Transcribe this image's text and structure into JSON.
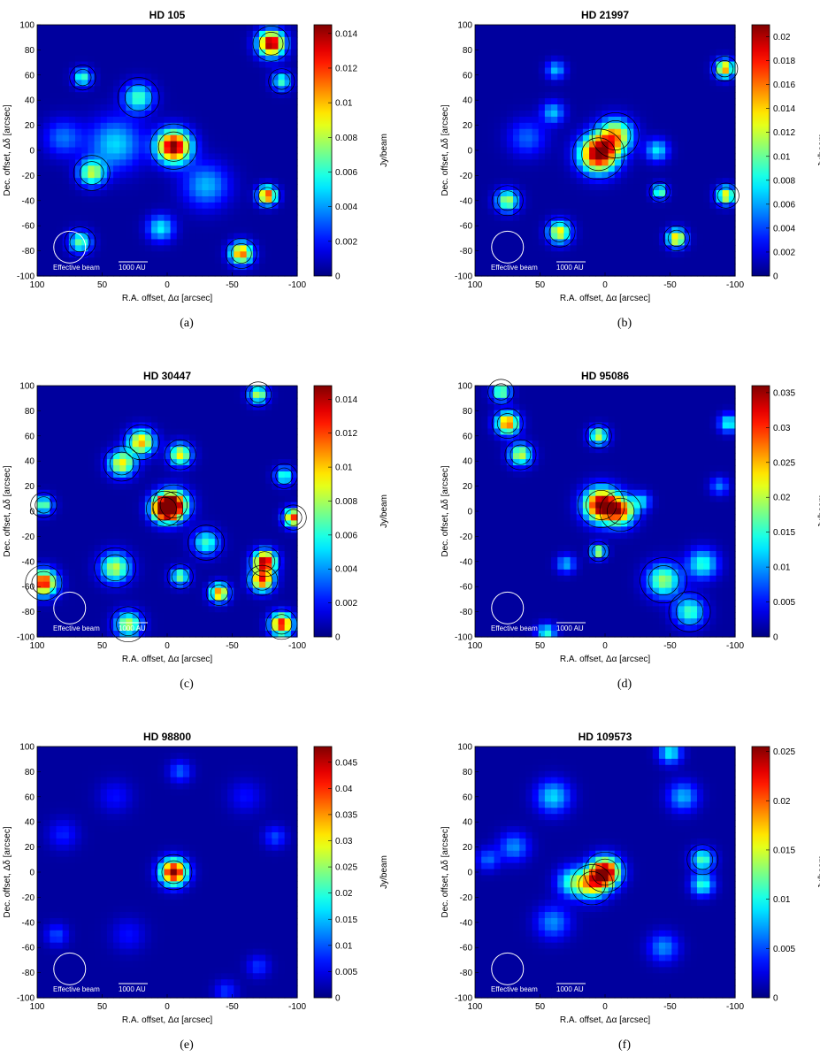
{
  "figure": {
    "beam_label": "Effective beam",
    "scale_label": "1000 AU",
    "colorbar_label": "Jy/beam",
    "xlabel": "R.A. offset, Δα [arcsec]",
    "ylabel": "Dec. offset, Δδ [arcsec]"
  },
  "chart_data": [
    {
      "type": "heatmap",
      "title": "HD 105",
      "caption": "(a)",
      "xlim": [
        100,
        -100
      ],
      "ylim": [
        -100,
        100
      ],
      "xticks": [
        100,
        50,
        0,
        -50,
        -100
      ],
      "yticks": [
        100,
        80,
        60,
        40,
        20,
        0,
        -20,
        -40,
        -60,
        -80,
        -100
      ],
      "xlabel": "R.A. offset, Δα [arcsec]",
      "ylabel": "Dec. offset, Δδ [arcsec]",
      "colorbar_label": "Jy/beam",
      "colorbar_range": [
        0,
        0.0145
      ],
      "colorbar_ticks": [
        "0",
        "0.002",
        "0.004",
        "0.006",
        "0.008",
        "0.01",
        "0.012",
        "0.014"
      ],
      "colorbar_tick_values": [
        0,
        0.002,
        0.004,
        0.006,
        0.008,
        0.01,
        0.012,
        0.014
      ],
      "sources": [
        {
          "x": -5,
          "y": 3,
          "peak": 0.0145,
          "width": 9
        },
        {
          "x": -80,
          "y": 85,
          "peak": 0.0145,
          "width": 7
        },
        {
          "x": -77,
          "y": -36,
          "peak": 0.012,
          "width": 5
        },
        {
          "x": -57,
          "y": -82,
          "peak": 0.011,
          "width": 6
        },
        {
          "x": 58,
          "y": -18,
          "peak": 0.0075,
          "width": 7
        },
        {
          "x": 67,
          "y": -73,
          "peak": 0.0065,
          "width": 6
        },
        {
          "x": 65,
          "y": 58,
          "peak": 0.006,
          "width": 5
        },
        {
          "x": 22,
          "y": 42,
          "peak": 0.006,
          "width": 8
        },
        {
          "x": 40,
          "y": 5,
          "peak": 0.0045,
          "width": 14
        },
        {
          "x": -88,
          "y": 55,
          "peak": 0.006,
          "width": 5
        },
        {
          "x": 5,
          "y": -62,
          "peak": 0.005,
          "width": 7
        },
        {
          "x": -30,
          "y": -28,
          "peak": 0.004,
          "width": 12
        },
        {
          "x": 80,
          "y": 10,
          "peak": 0.003,
          "width": 10
        }
      ]
    },
    {
      "type": "heatmap",
      "title": "HD 21997",
      "caption": "(b)",
      "xlim": [
        100,
        -100
      ],
      "ylim": [
        -100,
        100
      ],
      "xticks": [
        100,
        50,
        0,
        -50,
        -100
      ],
      "yticks": [
        100,
        80,
        60,
        40,
        20,
        0,
        -20,
        -40,
        -60,
        -80,
        -100
      ],
      "xlabel": "R.A. offset, Δα [arcsec]",
      "ylabel": "Dec. offset, Δδ [arcsec]",
      "colorbar_label": "Jy/beam",
      "colorbar_range": [
        0,
        0.021
      ],
      "colorbar_ticks": [
        "0",
        "0.002",
        "0.004",
        "0.006",
        "0.008",
        "0.01",
        "0.012",
        "0.014",
        "0.016",
        "0.018",
        "0.02"
      ],
      "colorbar_tick_values": [
        0,
        0.002,
        0.004,
        0.006,
        0.008,
        0.01,
        0.012,
        0.014,
        0.016,
        0.018,
        0.02
      ],
      "sources": [
        {
          "x": 5,
          "y": -3,
          "peak": 0.021,
          "width": 10
        },
        {
          "x": -8,
          "y": 12,
          "peak": 0.013,
          "width": 9
        },
        {
          "x": -92,
          "y": 65,
          "peak": 0.015,
          "width": 5
        },
        {
          "x": 75,
          "y": -40,
          "peak": 0.011,
          "width": 6
        },
        {
          "x": 35,
          "y": -65,
          "peak": 0.013,
          "width": 6
        },
        {
          "x": -55,
          "y": -70,
          "peak": 0.014,
          "width": 5
        },
        {
          "x": -93,
          "y": -36,
          "peak": 0.013,
          "width": 5
        },
        {
          "x": -42,
          "y": -33,
          "peak": 0.01,
          "width": 4
        },
        {
          "x": -40,
          "y": 0,
          "peak": 0.007,
          "width": 6
        },
        {
          "x": 40,
          "y": 30,
          "peak": 0.006,
          "width": 6
        },
        {
          "x": 38,
          "y": 64,
          "peak": 0.006,
          "width": 5
        },
        {
          "x": 60,
          "y": 10,
          "peak": 0.004,
          "width": 10
        }
      ]
    },
    {
      "type": "heatmap",
      "title": "HD 30447",
      "caption": "(c)",
      "xlim": [
        100,
        -100
      ],
      "ylim": [
        -100,
        100
      ],
      "xticks": [
        100,
        50,
        0,
        -50,
        -100
      ],
      "yticks": [
        100,
        80,
        60,
        40,
        20,
        0,
        -20,
        -40,
        -60,
        -80,
        -100
      ],
      "xlabel": "R.A. offset, Δα [arcsec]",
      "ylabel": "Dec. offset, Δδ [arcsec]",
      "colorbar_label": "Jy/beam",
      "colorbar_range": [
        0,
        0.0148
      ],
      "colorbar_ticks": [
        "0",
        "0.002",
        "0.004",
        "0.006",
        "0.008",
        "0.01",
        "0.012",
        "0.014"
      ],
      "colorbar_tick_values": [
        0,
        0.002,
        0.004,
        0.006,
        0.008,
        0.01,
        0.012,
        0.014
      ],
      "sources": [
        {
          "x": 2,
          "y": 2,
          "peak": 0.0148,
          "width": 7
        },
        {
          "x": -5,
          "y": 5,
          "peak": 0.012,
          "width": 8
        },
        {
          "x": -75,
          "y": -40,
          "peak": 0.014,
          "width": 6
        },
        {
          "x": -73,
          "y": -55,
          "peak": 0.012,
          "width": 6
        },
        {
          "x": 95,
          "y": -57,
          "peak": 0.013,
          "width": 7
        },
        {
          "x": -88,
          "y": -90,
          "peak": 0.013,
          "width": 6
        },
        {
          "x": -40,
          "y": -65,
          "peak": 0.011,
          "width": 5
        },
        {
          "x": 20,
          "y": 55,
          "peak": 0.01,
          "width": 7
        },
        {
          "x": -10,
          "y": 45,
          "peak": 0.009,
          "width": 6
        },
        {
          "x": 35,
          "y": 38,
          "peak": 0.009,
          "width": 7
        },
        {
          "x": -70,
          "y": 93,
          "peak": 0.008,
          "width": 5
        },
        {
          "x": -97,
          "y": -5,
          "peak": 0.012,
          "width": 5
        },
        {
          "x": -90,
          "y": 28,
          "peak": 0.006,
          "width": 5
        },
        {
          "x": 40,
          "y": -45,
          "peak": 0.008,
          "width": 8
        },
        {
          "x": -10,
          "y": -52,
          "peak": 0.007,
          "width": 5
        },
        {
          "x": 30,
          "y": -90,
          "peak": 0.008,
          "width": 7
        },
        {
          "x": 95,
          "y": 5,
          "peak": 0.007,
          "width": 5
        },
        {
          "x": -30,
          "y": -25,
          "peak": 0.006,
          "width": 7
        }
      ]
    },
    {
      "type": "heatmap",
      "title": "HD 95086",
      "caption": "(d)",
      "xlim": [
        100,
        -100
      ],
      "ylim": [
        -100,
        100
      ],
      "xticks": [
        100,
        50,
        0,
        -50,
        -100
      ],
      "yticks": [
        100,
        80,
        60,
        40,
        20,
        0,
        -20,
        -40,
        -60,
        -80,
        -100
      ],
      "xlabel": "R.A. offset, Δα [arcsec]",
      "ylabel": "Dec. offset, Δδ [arcsec]",
      "colorbar_label": "Jy/beam",
      "colorbar_range": [
        0,
        0.036
      ],
      "colorbar_ticks": [
        "0",
        "0.005",
        "0.01",
        "0.015",
        "0.02",
        "0.025",
        "0.03",
        "0.035"
      ],
      "colorbar_tick_values": [
        0,
        0.005,
        0.01,
        0.015,
        0.02,
        0.025,
        0.03,
        0.035
      ],
      "sources": [
        {
          "x": 3,
          "y": 5,
          "peak": 0.036,
          "width": 9
        },
        {
          "x": -12,
          "y": 0,
          "peak": 0.025,
          "width": 8
        },
        {
          "x": 75,
          "y": 70,
          "peak": 0.028,
          "width": 6
        },
        {
          "x": 65,
          "y": 45,
          "peak": 0.02,
          "width": 6
        },
        {
          "x": 80,
          "y": 95,
          "peak": 0.018,
          "width": 5
        },
        {
          "x": 5,
          "y": 60,
          "peak": 0.02,
          "width": 5
        },
        {
          "x": 5,
          "y": -32,
          "peak": 0.02,
          "width": 4
        },
        {
          "x": -45,
          "y": -55,
          "peak": 0.018,
          "width": 9
        },
        {
          "x": -65,
          "y": -80,
          "peak": 0.015,
          "width": 8
        },
        {
          "x": -75,
          "y": -42,
          "peak": 0.014,
          "width": 8
        },
        {
          "x": -95,
          "y": 70,
          "peak": 0.014,
          "width": 5
        },
        {
          "x": 45,
          "y": -97,
          "peak": 0.014,
          "width": 5
        },
        {
          "x": 30,
          "y": -42,
          "peak": 0.01,
          "width": 5
        },
        {
          "x": -28,
          "y": 8,
          "peak": 0.01,
          "width": 5
        },
        {
          "x": -88,
          "y": 20,
          "peak": 0.008,
          "width": 5
        }
      ]
    },
    {
      "type": "heatmap",
      "title": "HD 98800",
      "caption": "(e)",
      "xlim": [
        100,
        -100
      ],
      "ylim": [
        -100,
        100
      ],
      "xticks": [
        100,
        50,
        0,
        -50,
        -100
      ],
      "yticks": [
        100,
        80,
        60,
        40,
        20,
        0,
        -20,
        -40,
        -60,
        -80,
        -100
      ],
      "xlabel": "R.A. offset, Δα [arcsec]",
      "ylabel": "Dec. offset, Δδ [arcsec]",
      "colorbar_label": "Jy/beam",
      "colorbar_range": [
        0,
        0.048
      ],
      "colorbar_ticks": [
        "0",
        "0.005",
        "0.01",
        "0.015",
        "0.02",
        "0.025",
        "0.03",
        "0.035",
        "0.04",
        "0.045"
      ],
      "colorbar_tick_values": [
        0,
        0.005,
        0.01,
        0.015,
        0.02,
        0.025,
        0.03,
        0.035,
        0.04,
        0.045
      ],
      "sources": [
        {
          "x": -5,
          "y": 0,
          "peak": 0.048,
          "width": 7
        },
        {
          "x": -10,
          "y": 80,
          "peak": 0.009,
          "width": 6
        },
        {
          "x": -83,
          "y": 28,
          "peak": 0.008,
          "width": 6
        },
        {
          "x": 85,
          "y": -50,
          "peak": 0.008,
          "width": 6
        },
        {
          "x": -70,
          "y": -75,
          "peak": 0.007,
          "width": 6
        },
        {
          "x": -45,
          "y": -95,
          "peak": 0.007,
          "width": 6
        },
        {
          "x": 80,
          "y": 30,
          "peak": 0.006,
          "width": 8
        },
        {
          "x": 40,
          "y": 60,
          "peak": 0.005,
          "width": 9
        },
        {
          "x": -60,
          "y": 60,
          "peak": 0.005,
          "width": 9
        },
        {
          "x": 30,
          "y": -50,
          "peak": 0.005,
          "width": 9
        }
      ]
    },
    {
      "type": "heatmap",
      "title": "HD 109573",
      "caption": "(f)",
      "xlim": [
        100,
        -100
      ],
      "ylim": [
        -100,
        100
      ],
      "xticks": [
        100,
        50,
        0,
        -50,
        -100
      ],
      "yticks": [
        100,
        80,
        60,
        40,
        20,
        0,
        -20,
        -40,
        -60,
        -80,
        -100
      ],
      "xlabel": "R.A. offset, Δα [arcsec]",
      "ylabel": "Dec. offset, Δδ [arcsec]",
      "colorbar_label": "Jy/beam",
      "colorbar_range": [
        0,
        0.0255
      ],
      "colorbar_ticks": [
        "0",
        "0.005",
        "0.01",
        "0.015",
        "0.02",
        "0.025"
      ],
      "colorbar_tick_values": [
        0,
        0.005,
        0.01,
        0.015,
        0.02,
        0.025
      ],
      "sources": [
        {
          "x": 0,
          "y": 0,
          "peak": 0.0255,
          "width": 8
        },
        {
          "x": 10,
          "y": -10,
          "peak": 0.014,
          "width": 8
        },
        {
          "x": 25,
          "y": -8,
          "peak": 0.01,
          "width": 8
        },
        {
          "x": -75,
          "y": 10,
          "peak": 0.011,
          "width": 6
        },
        {
          "x": -75,
          "y": -10,
          "peak": 0.01,
          "width": 6
        },
        {
          "x": 40,
          "y": 60,
          "peak": 0.008,
          "width": 9
        },
        {
          "x": -60,
          "y": 60,
          "peak": 0.007,
          "width": 8
        },
        {
          "x": -50,
          "y": 95,
          "peak": 0.009,
          "width": 6
        },
        {
          "x": 70,
          "y": 20,
          "peak": 0.006,
          "width": 8
        },
        {
          "x": -45,
          "y": -60,
          "peak": 0.006,
          "width": 8
        },
        {
          "x": 40,
          "y": -40,
          "peak": 0.006,
          "width": 9
        },
        {
          "x": 90,
          "y": 10,
          "peak": 0.005,
          "width": 6
        }
      ]
    }
  ]
}
